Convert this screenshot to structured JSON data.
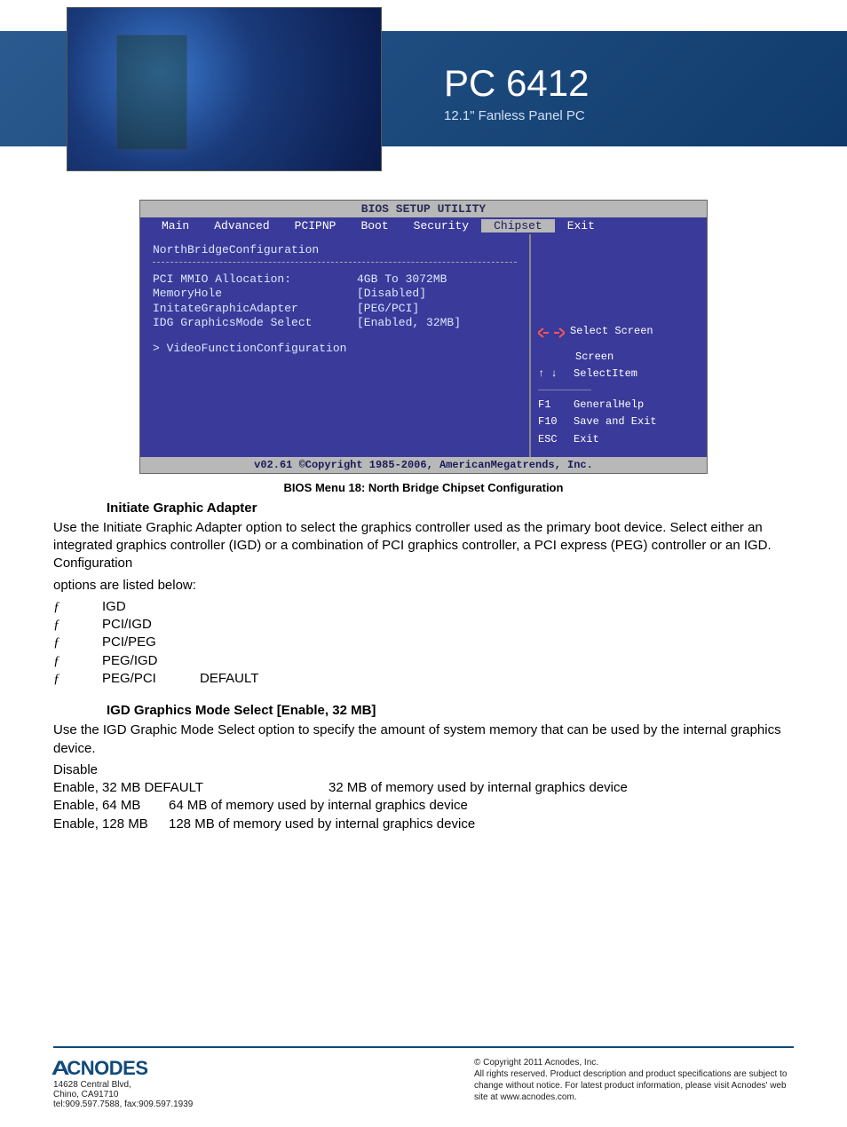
{
  "header": {
    "title": "PC 6412",
    "subtitle": "12.1\" Fanless Panel PC",
    "banner_gradient": [
      "#2a5a8f",
      "#0f3a6b"
    ],
    "title_color": "#ffffff",
    "subtitle_color": "#cfe0f5"
  },
  "bios": {
    "title": "BIOS SETUP UTILITY",
    "tabs": [
      "Main",
      "Advanced",
      "PCIPNP",
      "Boot",
      "Security",
      "Chipset",
      "Exit"
    ],
    "active_tab_index": 5,
    "bg_color": "#3a3a9a",
    "titlebar_bg": "#b8b8b8",
    "titlebar_fg": "#2a2a5a",
    "section_heading": "NorthBridgeConfiguration",
    "truncated_row_label": "………………………",
    "truncated_row_val": "[………]",
    "rows": [
      {
        "label": "  PCI MMIO Allocation:",
        "value": "4GB To 3072MB"
      },
      {
        "label": "MemoryHole",
        "value": "[Disabled]"
      },
      {
        "label": "",
        "value": ""
      },
      {
        "label": "InitateGraphicAdapter",
        "value": "[PEG/PCI]"
      },
      {
        "label": "IDG GraphicsMode Select",
        "value": "[Enabled, 32MB]"
      }
    ],
    "submenu": "> VideoFunctionConfiguration",
    "help": {
      "select_screen_arrows": "← →",
      "select_screen": "Select Screen",
      "select_item_arrows": "↑ ↓",
      "select_item": "SelectItem",
      "truncated": "…………………………",
      "lines": [
        {
          "key": "F1",
          "text": "GeneralHelp"
        },
        {
          "key": "F10",
          "text": "Save and Exit"
        },
        {
          "key": "ESC",
          "text": "Exit"
        }
      ]
    },
    "footer": "v02.61 ©Copyright 1985-2006, AmericanMegatrends, Inc."
  },
  "caption": "BIOS Menu 18: North Bridge Chipset Configuration",
  "body": {
    "h1": "Initiate Graphic Adapter",
    "p1": "Use the Initiate Graphic Adapter option to select the graphics controller used as the primary boot device. Select either an integrated graphics controller (IGD) or a combination of PCI graphics controller, a PCI express (PEG) controller or an IGD. Configuration",
    "p1b": "options are listed below:",
    "options": [
      {
        "bullet": "ƒ",
        "name": "IGD",
        "def": ""
      },
      {
        "bullet": "ƒ",
        "name": "PCI/IGD",
        "def": ""
      },
      {
        "bullet": "ƒ",
        "name": "PCI/PEG",
        "def": ""
      },
      {
        "bullet": "ƒ",
        "name": "PEG/IGD",
        "def": ""
      },
      {
        "bullet": "ƒ",
        "name": "PEG/PCI",
        "def": "DEFAULT"
      }
    ],
    "h2": "IGD Graphics Mode Select [Enable, 32 MB]",
    "p2": "Use the IGD Graphic Mode Select option to specify the amount of system memory that can be used by the internal graphics device.",
    "mem_rows": [
      {
        "opt": "Disable",
        "desc": ""
      },
      {
        "opt": "Enable, 32 MB DEFAULT",
        "desc": "32 MB  of  memory  used  by internal graphics device",
        "wide": true
      },
      {
        "opt": "Enable, 64 MB",
        "desc": "64  MB  of  memory  used  by internal graphics device"
      },
      {
        "opt": "Enable, 128 MB",
        "desc": "128 MB  of  memory  used  by internal graphics device"
      }
    ]
  },
  "footer": {
    "logo": "CNODES",
    "logo_prefix": "A",
    "addr1": "14628 Central Blvd,",
    "addr2": "Chino, CA91710",
    "addr3": "tel:909.597.7588, fax:909.597.1939",
    "copy1": "© Copyright 2011 Acnodes, Inc.",
    "copy2": "All rights reserved. Product description and product specifications are subject to change without notice. For latest product information, please visit Acnodes' web site at www.acnodes.com.",
    "line_color": "#104a7a"
  }
}
